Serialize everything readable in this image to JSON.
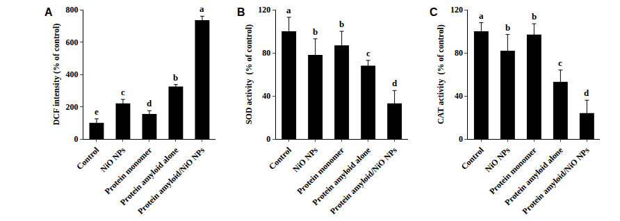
{
  "chart_data": [
    {
      "type": "bar",
      "title": "A",
      "y_label": "DCF intensity (% of control)",
      "categories": [
        "Control",
        "NiO NPs",
        "Protein monomer",
        "Protein amyloid alone",
        "Protein amyloid/NiO NPs"
      ],
      "values": [
        100,
        220,
        155,
        325,
        735
      ],
      "errors": [
        25,
        25,
        20,
        12,
        25
      ],
      "annotations": [
        "e",
        "c",
        "d",
        "b",
        "a"
      ],
      "color": "#000000",
      "ylim": [
        0,
        800
      ],
      "yticks": [
        0,
        200,
        400,
        600,
        800
      ],
      "grid": false
    },
    {
      "type": "bar",
      "title": "B",
      "y_label": "SOD activity  (% of control)",
      "categories": [
        "Control",
        "NiO NPs",
        "Protein monomer",
        "Protein amyloid alone",
        "Protein amyloid/NiO NPs"
      ],
      "values": [
        100,
        78,
        87,
        68,
        33
      ],
      "errors": [
        13,
        15,
        13,
        5,
        12
      ],
      "annotations": [
        "a",
        "b",
        "b",
        "c",
        "d"
      ],
      "color": "#000000",
      "ylim": [
        0,
        120
      ],
      "yticks": [
        0,
        40,
        80,
        120
      ],
      "grid": false
    },
    {
      "type": "bar",
      "title": "C",
      "y_label": "CAT activity  (% of control)",
      "categories": [
        "Control",
        "NiO NPs",
        "Protein monomer",
        "Protein amyloid alone",
        "Protein amyloid/NiO NPs"
      ],
      "values": [
        100,
        82,
        97,
        53,
        24
      ],
      "errors": [
        8,
        15,
        10,
        11,
        12
      ],
      "annotations": [
        "a",
        "b",
        "b",
        "c",
        "d"
      ],
      "color": "#000000",
      "ylim": [
        0,
        120
      ],
      "yticks": [
        0,
        40,
        80,
        120
      ],
      "grid": false
    }
  ]
}
